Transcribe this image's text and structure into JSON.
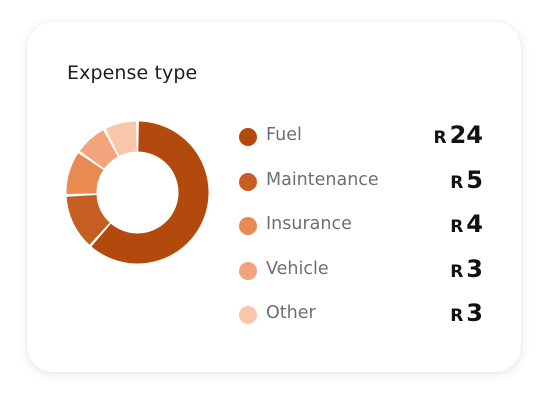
{
  "card": {
    "title": "Expense type"
  },
  "currency_symbol": "R",
  "chart_data": {
    "type": "pie",
    "donut": true,
    "title": "Expense type",
    "legend_position": "right",
    "categories": [
      "Fuel",
      "Maintenance",
      "Insurance",
      "Vehicle",
      "Other"
    ],
    "values": [
      24,
      5,
      4,
      3,
      3
    ],
    "colors": [
      "#b24a0e",
      "#c55e20",
      "#e88a52",
      "#f2a57d",
      "#f8c6aa"
    ]
  }
}
